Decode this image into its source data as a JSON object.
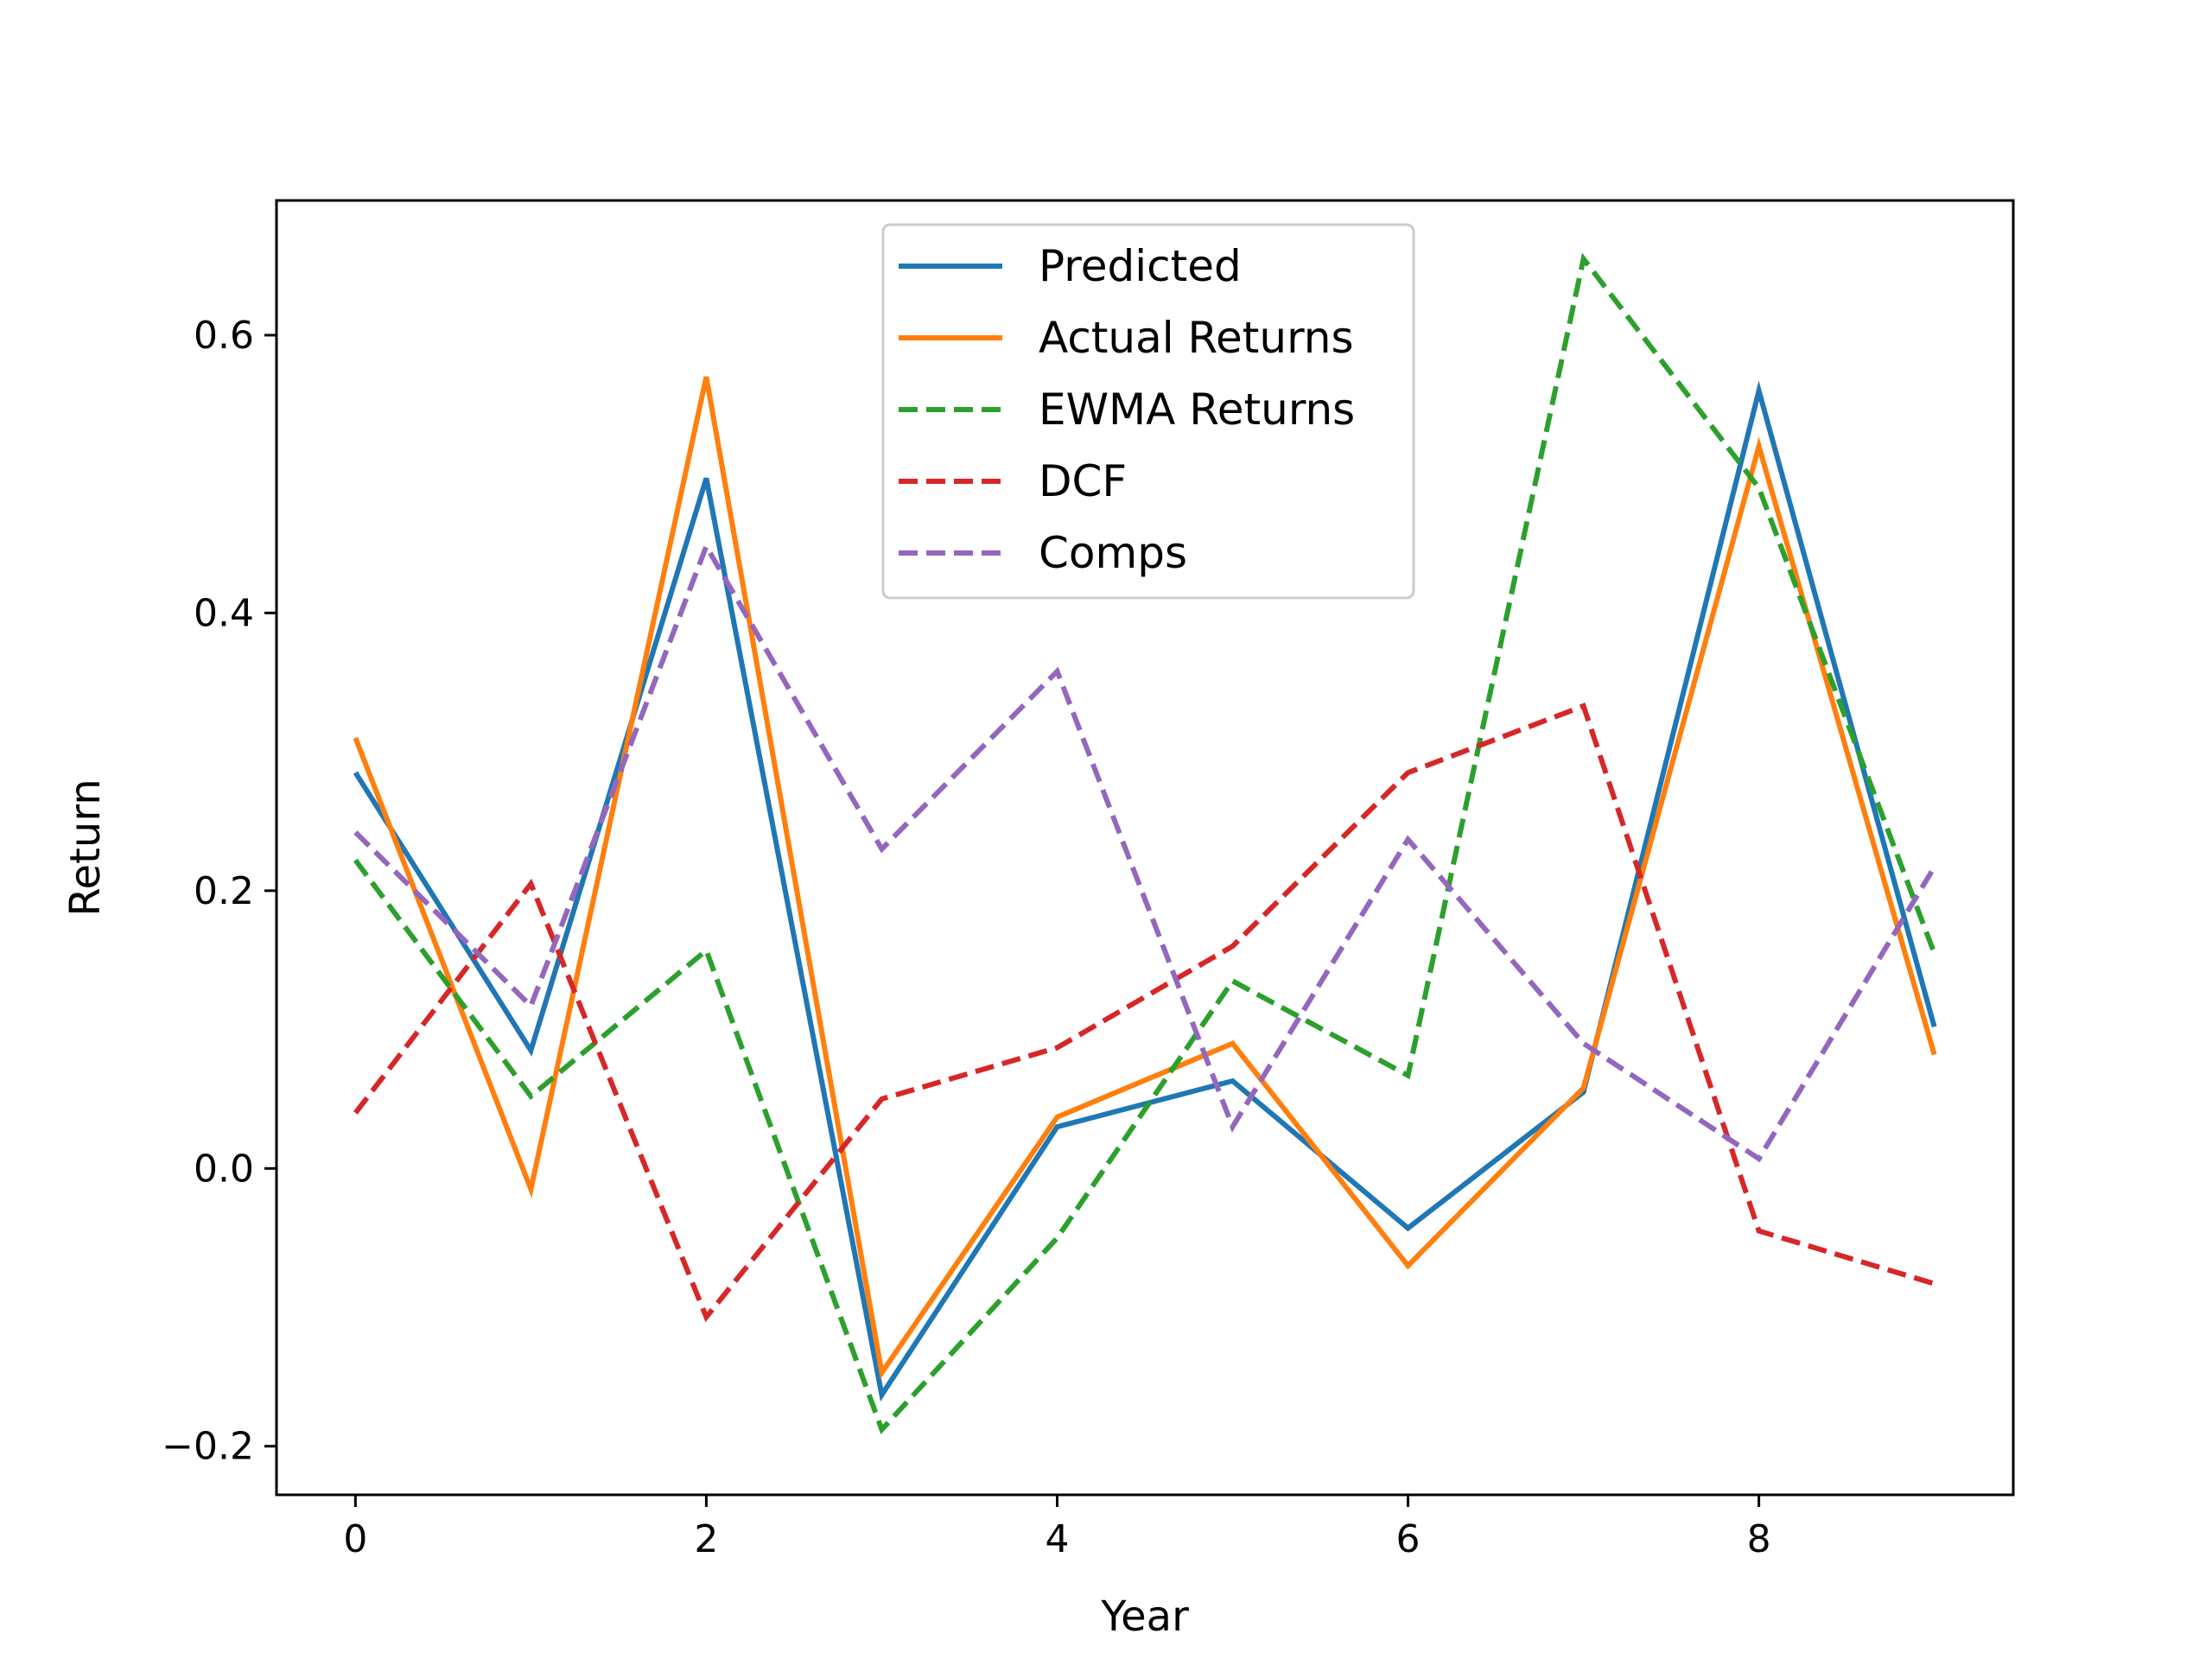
{
  "chart_data": {
    "type": "line",
    "title": "",
    "xlabel": "Year",
    "ylabel": "Return",
    "xlim": [
      -0.45,
      9.45
    ],
    "ylim": [
      -0.235,
      0.697
    ],
    "xticks": [
      0,
      2,
      4,
      6,
      8
    ],
    "xtick_labels": [
      "0",
      "2",
      "4",
      "6",
      "8"
    ],
    "yticks": [
      -0.2,
      0.0,
      0.2,
      0.4,
      0.6
    ],
    "ytick_labels": [
      "−0.2",
      "0.0",
      "0.2",
      "0.4",
      "0.6"
    ],
    "grid": false,
    "legend_position": "top-center",
    "x": [
      0,
      1,
      2,
      3,
      4,
      5,
      6,
      7,
      8,
      9
    ],
    "series": [
      {
        "name": "Predicted",
        "color": "#1f77b4",
        "style": "solid",
        "values": [
          0.285,
          0.085,
          0.497,
          -0.163,
          0.03,
          0.063,
          -0.043,
          0.055,
          0.56,
          0.102
        ]
      },
      {
        "name": "Actual Returns",
        "color": "#ff7f0e",
        "style": "solid",
        "values": [
          0.31,
          -0.015,
          0.57,
          -0.147,
          0.037,
          0.09,
          -0.07,
          0.058,
          0.52,
          0.082
        ]
      },
      {
        "name": "EWMA Returns",
        "color": "#2ca02c",
        "style": "dashed",
        "values": [
          0.222,
          0.052,
          0.157,
          -0.188,
          -0.05,
          0.135,
          0.067,
          0.655,
          0.49,
          0.155
        ]
      },
      {
        "name": "DCF",
        "color": "#d62728",
        "style": "dashed",
        "values": [
          0.04,
          0.205,
          -0.107,
          0.05,
          0.087,
          0.16,
          0.285,
          0.333,
          -0.045,
          -0.083
        ]
      },
      {
        "name": "Comps",
        "color": "#9467bd",
        "style": "dashed",
        "values": [
          0.242,
          0.117,
          0.448,
          0.23,
          0.358,
          0.03,
          0.237,
          0.09,
          0.007,
          0.217
        ]
      }
    ]
  }
}
